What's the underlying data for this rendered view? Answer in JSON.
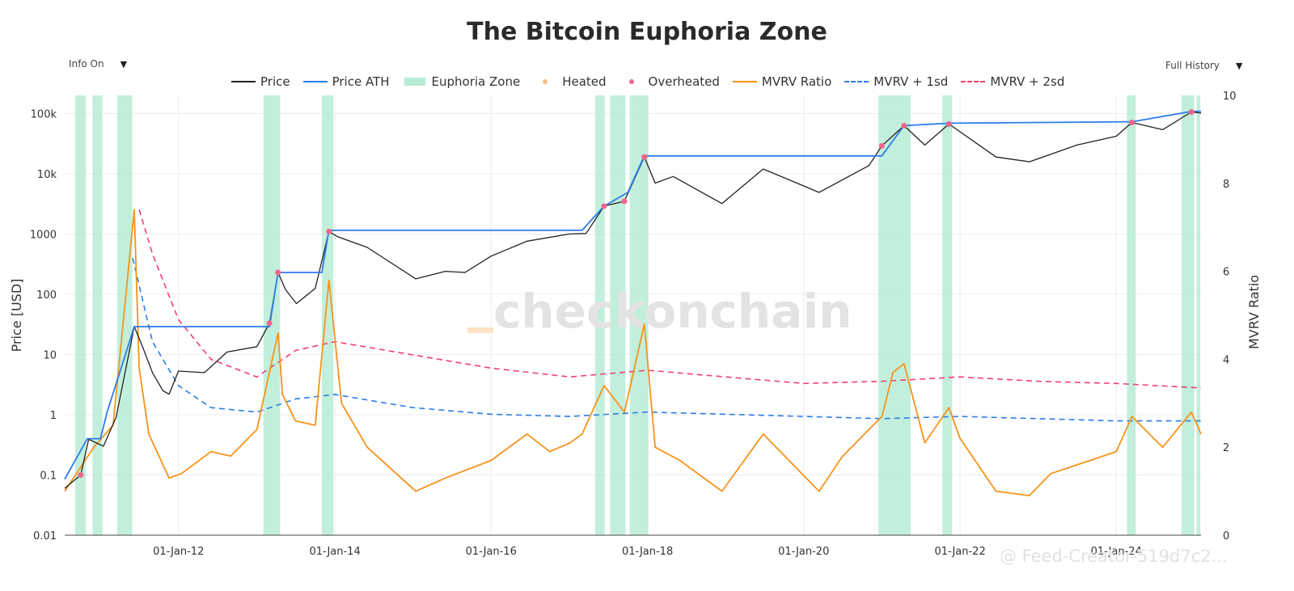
{
  "header": {
    "title": "The Bitcoin Euphoria Zone",
    "left_dropdown": "Info On",
    "right_dropdown": "Full History"
  },
  "watermark": "checkonchain",
  "footer_watermark": "@ Feed-Creator-519d7c2...",
  "legend": [
    {
      "label": "Price",
      "style": "line",
      "color": "#222222"
    },
    {
      "label": "Price ATH",
      "style": "line",
      "color": "#2b7de9"
    },
    {
      "label": "Euphoria Zone",
      "style": "area",
      "color": "#b7ecd6"
    },
    {
      "label": "Heated",
      "style": "dot",
      "color": "#f6c08a"
    },
    {
      "label": "Overheated",
      "style": "dot",
      "color": "#f2668b"
    },
    {
      "label": "MVRV Ratio",
      "style": "line",
      "color": "#f7931a"
    },
    {
      "label": "MVRV + 1sd",
      "style": "dash",
      "color": "#2b7de9"
    },
    {
      "label": "MVRV + 2sd",
      "style": "dash",
      "color": "#f2406e"
    }
  ],
  "chart_data": {
    "type": "line",
    "title": "The Bitcoin Euphoria Zone",
    "xlabel": "",
    "ylabel": "Price [USD]",
    "y2label": "MVRV Ratio",
    "y_scale": "log",
    "ylim": [
      0.01,
      200000
    ],
    "y2lim": [
      0,
      10
    ],
    "xlim": [
      "2010-07-18",
      "2025-01-31"
    ],
    "x_ticks": [
      "01-Jan-12",
      "01-Jan-14",
      "01-Jan-16",
      "01-Jan-18",
      "01-Jan-20",
      "01-Jan-22",
      "01-Jan-24"
    ],
    "y_ticks": [
      "0.01",
      "0.1",
      "1",
      "10",
      "100",
      "1000",
      "10k",
      "100k"
    ],
    "y2_ticks": [
      "0",
      "2",
      "4",
      "6",
      "8",
      "10"
    ],
    "grid": true,
    "legend_position": "top",
    "series": [
      {
        "name": "Price",
        "x": [
          "2010-07-18",
          "2010-10-01",
          "2010-11-07",
          "2011-01-15",
          "2011-03-15",
          "2011-06-08",
          "2011-07-15",
          "2011-09-01",
          "2011-10-20",
          "2011-11-18",
          "2012-01-01",
          "2012-05-01",
          "2012-08-15",
          "2013-01-01",
          "2013-03-01",
          "2013-04-10",
          "2013-05-15",
          "2013-07-05",
          "2013-10-01",
          "2013-12-04",
          "2014-01-15",
          "2014-06-01",
          "2015-01-14",
          "2015-06-01",
          "2015-09-01",
          "2016-01-01",
          "2016-06-17",
          "2017-01-01",
          "2017-03-20",
          "2017-06-12",
          "2017-09-15",
          "2017-12-17",
          "2018-02-06",
          "2018-05-01",
          "2018-12-15",
          "2019-06-26",
          "2020-03-13",
          "2020-11-01",
          "2020-12-31",
          "2021-04-14",
          "2021-07-20",
          "2021-11-10",
          "2022-06-18",
          "2022-11-21",
          "2023-07-01",
          "2024-01-01",
          "2024-03-14",
          "2024-08-05",
          "2024-12-17",
          "2025-01-31"
        ],
        "values": [
          0.06,
          0.1,
          0.39,
          0.3,
          0.9,
          29,
          14,
          5,
          2.5,
          2.2,
          5.3,
          5,
          11,
          13.5,
          33,
          230,
          120,
          70,
          125,
          1100,
          900,
          600,
          180,
          240,
          230,
          430,
          760,
          1000,
          1020,
          2900,
          3500,
          19000,
          7000,
          9000,
          3200,
          12000,
          4900,
          13700,
          29000,
          63000,
          30000,
          67000,
          19000,
          15800,
          30000,
          42000,
          71000,
          54000,
          106000,
          102000
        ]
      },
      {
        "name": "Price ATH",
        "x": [
          "2010-07-18",
          "2010-11-01",
          "2011-01-01",
          "2011-02-01",
          "2011-06-08",
          "2013-03-01",
          "2013-04-10",
          "2013-11-01",
          "2013-12-04",
          "2017-03-01",
          "2017-06-12",
          "2017-10-01",
          "2017-12-17",
          "2020-12-31",
          "2021-04-14",
          "2021-11-10",
          "2024-03-14",
          "2024-12-17",
          "2025-01-31"
        ],
        "values": [
          0.085,
          0.4,
          0.4,
          1.1,
          29,
          29,
          230,
          230,
          1150,
          1150,
          2900,
          4900,
          19800,
          19800,
          63000,
          69000,
          73000,
          108000,
          109000
        ]
      },
      {
        "name": "MVRV Ratio",
        "axis": "right",
        "x": [
          "2010-07-18",
          "2010-12-01",
          "2011-03-01",
          "2011-05-15",
          "2011-06-08",
          "2011-07-01",
          "2011-08-15",
          "2011-11-18",
          "2012-01-15",
          "2012-06-01",
          "2012-09-01",
          "2013-01-01",
          "2013-04-10",
          "2013-05-01",
          "2013-07-01",
          "2013-10-01",
          "2013-12-04",
          "2014-02-01",
          "2014-06-01",
          "2015-01-14",
          "2015-06-01",
          "2016-01-01",
          "2016-06-17",
          "2016-10-01",
          "2017-01-04",
          "2017-03-01",
          "2017-06-12",
          "2017-09-15",
          "2017-12-17",
          "2018-02-06",
          "2018-06-01",
          "2018-12-15",
          "2019-06-26",
          "2020-03-13",
          "2020-07-01",
          "2021-01-01",
          "2021-02-21",
          "2021-04-14",
          "2021-07-20",
          "2021-11-10",
          "2022-01-01",
          "2022-06-18",
          "2022-11-21",
          "2023-03-01",
          "2023-07-01",
          "2024-01-01",
          "2024-03-14",
          "2024-08-05",
          "2024-12-17",
          "2025-01-31"
        ],
        "values": [
          1.0,
          2.0,
          2.5,
          6.2,
          7.4,
          3.8,
          2.3,
          1.3,
          1.4,
          1.9,
          1.8,
          2.4,
          4.6,
          3.2,
          2.6,
          2.5,
          5.8,
          3.0,
          2.0,
          1.0,
          1.3,
          1.7,
          2.3,
          1.9,
          2.1,
          2.3,
          3.4,
          2.8,
          4.8,
          2.0,
          1.7,
          1.0,
          2.3,
          1.0,
          1.8,
          2.7,
          3.7,
          3.9,
          2.1,
          2.9,
          2.2,
          1.0,
          0.9,
          1.4,
          1.6,
          1.9,
          2.7,
          2.0,
          2.8,
          2.3
        ]
      },
      {
        "name": "MVRV + 1sd",
        "axis": "right",
        "x": [
          "2011-06-01",
          "2011-09-01",
          "2012-01-01",
          "2012-06-01",
          "2013-01-01",
          "2013-07-01",
          "2014-01-01",
          "2015-01-01",
          "2016-01-01",
          "2017-01-01",
          "2018-01-01",
          "2019-01-01",
          "2020-01-01",
          "2021-01-01",
          "2022-01-01",
          "2023-01-01",
          "2024-01-01",
          "2025-01-31"
        ],
        "values": [
          6.3,
          4.4,
          3.4,
          2.9,
          2.8,
          3.1,
          3.2,
          2.9,
          2.75,
          2.7,
          2.8,
          2.75,
          2.7,
          2.65,
          2.7,
          2.65,
          2.6,
          2.6
        ]
      },
      {
        "name": "MVRV + 2sd",
        "axis": "right",
        "x": [
          "2011-07-01",
          "2011-09-01",
          "2012-01-01",
          "2012-06-01",
          "2013-01-01",
          "2013-07-01",
          "2014-01-01",
          "2015-01-01",
          "2016-01-01",
          "2017-01-01",
          "2018-01-01",
          "2019-01-01",
          "2020-01-01",
          "2021-01-01",
          "2022-01-01",
          "2023-01-01",
          "2024-01-01",
          "2025-01-31"
        ],
        "values": [
          7.4,
          6.4,
          4.9,
          4.0,
          3.6,
          4.2,
          4.4,
          4.1,
          3.8,
          3.6,
          3.75,
          3.6,
          3.45,
          3.5,
          3.6,
          3.5,
          3.45,
          3.35
        ]
      }
    ],
    "euphoria_zones": [
      [
        "2010-09-05",
        "2010-10-25"
      ],
      [
        "2010-11-25",
        "2011-01-10"
      ],
      [
        "2011-03-20",
        "2011-05-30"
      ],
      [
        "2013-02-01",
        "2013-04-20"
      ],
      [
        "2013-11-01",
        "2013-12-25"
      ],
      [
        "2017-05-01",
        "2017-06-15"
      ],
      [
        "2017-07-10",
        "2017-09-20"
      ],
      [
        "2017-10-10",
        "2018-01-05"
      ],
      [
        "2020-12-15",
        "2021-05-15"
      ],
      [
        "2021-10-10",
        "2021-11-25"
      ],
      [
        "2024-02-20",
        "2024-04-01"
      ],
      [
        "2024-11-01",
        "2024-12-31"
      ],
      [
        "2025-01-10",
        "2025-01-28"
      ]
    ]
  }
}
